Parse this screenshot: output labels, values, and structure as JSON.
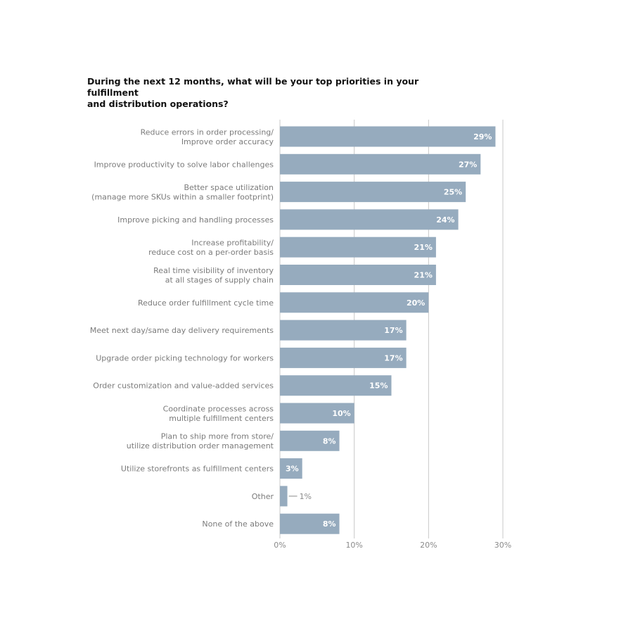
{
  "chart_data": {
    "type": "bar",
    "orientation": "horizontal",
    "title_lines": [
      "During the next 12 months, what will be your top priorities in your fulfillment",
      "and distribution operations?"
    ],
    "categories": [
      [
        "Reduce errors in order processing/",
        "Improve order accuracy"
      ],
      [
        "Improve productivity to solve labor challenges"
      ],
      [
        "Better space utilization",
        "(manage more SKUs within a smaller footprint)"
      ],
      [
        "Improve picking and handling processes"
      ],
      [
        "Increase profitability/",
        "reduce cost on a per-order basis"
      ],
      [
        "Real time visibility of inventory",
        "at all stages of supply chain"
      ],
      [
        "Reduce order fulfillment cycle time"
      ],
      [
        "Meet next day/same day delivery requirements"
      ],
      [
        "Upgrade order picking technology for workers"
      ],
      [
        "Order customization and value-added services"
      ],
      [
        "Coordinate processes across",
        "multiple fulfillment centers"
      ],
      [
        "Plan to ship more from store/",
        "utilize distribution order management"
      ],
      [
        "Utilize storefronts as fulfillment centers"
      ],
      [
        "Other"
      ],
      [
        "None of the above"
      ]
    ],
    "values": [
      29,
      27,
      25,
      24,
      21,
      21,
      20,
      17,
      17,
      15,
      10,
      8,
      3,
      1,
      8
    ],
    "value_labels": [
      "29%",
      "27%",
      "25%",
      "24%",
      "21%",
      "21%",
      "20%",
      "17%",
      "17%",
      "15%",
      "10%",
      "8%",
      "3%",
      "1%",
      "8%"
    ],
    "xlim": [
      0,
      30
    ],
    "x_ticks": [
      0,
      10,
      20,
      30
    ],
    "x_tick_labels": [
      "0%",
      "10%",
      "20%",
      "30%"
    ],
    "grid": true,
    "colors": {
      "bar": "#96abbe",
      "bar_label": "#ffffff",
      "outside_label": "#8a8a8a",
      "grid": "#c8c8c8",
      "category_text": "#7b7b7b",
      "title": "#111111"
    }
  }
}
